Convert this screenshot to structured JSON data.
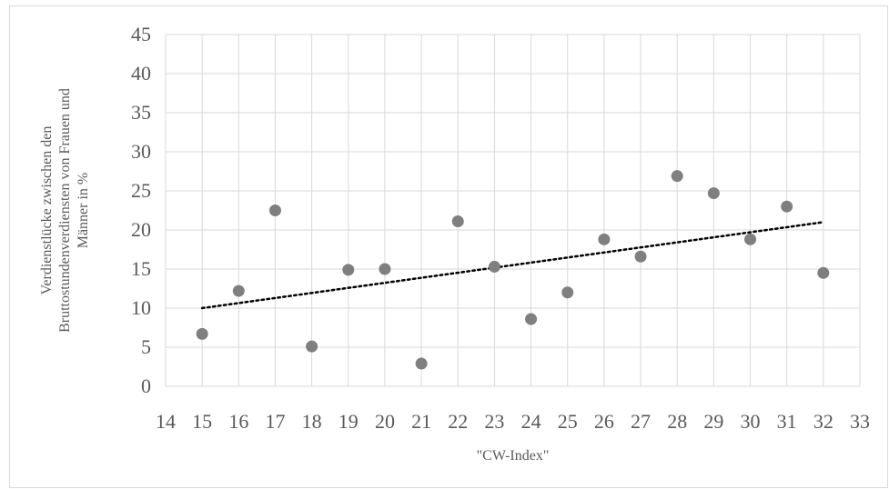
{
  "chart_data": {
    "type": "scatter",
    "title": "",
    "xlabel": "\"CW-Index\"",
    "ylabel": [
      "Verdienstlücke zwischen den",
      "Bruttostundenverdiensten von Frauen und",
      "Männer in %"
    ],
    "xlim": [
      14,
      33
    ],
    "ylim": [
      0,
      45
    ],
    "x_ticks": [
      "14",
      "15",
      "16",
      "17",
      "18",
      "19",
      "20",
      "21",
      "22",
      "23",
      "24",
      "25",
      "26",
      "27",
      "28",
      "29",
      "30",
      "31",
      "32",
      "33"
    ],
    "y_ticks": [
      "0",
      "5",
      "10",
      "15",
      "20",
      "25",
      "30",
      "35",
      "40",
      "45"
    ],
    "grid": true,
    "legend": "none",
    "colors": {
      "marker": "#7f7f7f",
      "grid": "#d9d9d9",
      "text": "#595959",
      "trend": "#000000"
    },
    "series": [
      {
        "x": [
          15,
          16,
          17,
          18,
          19,
          20,
          21,
          22,
          23,
          24,
          25,
          26,
          27,
          28,
          29,
          30,
          31,
          32
        ],
        "y": [
          6.7,
          12.2,
          22.5,
          5.1,
          14.9,
          15.0,
          2.9,
          21.1,
          15.3,
          8.6,
          12.0,
          18.8,
          16.6,
          26.9,
          24.7,
          18.8,
          23.0,
          14.5
        ]
      }
    ],
    "trendline": {
      "type": "linear",
      "x": [
        15,
        32
      ],
      "y": [
        10.0,
        21.0
      ]
    }
  }
}
